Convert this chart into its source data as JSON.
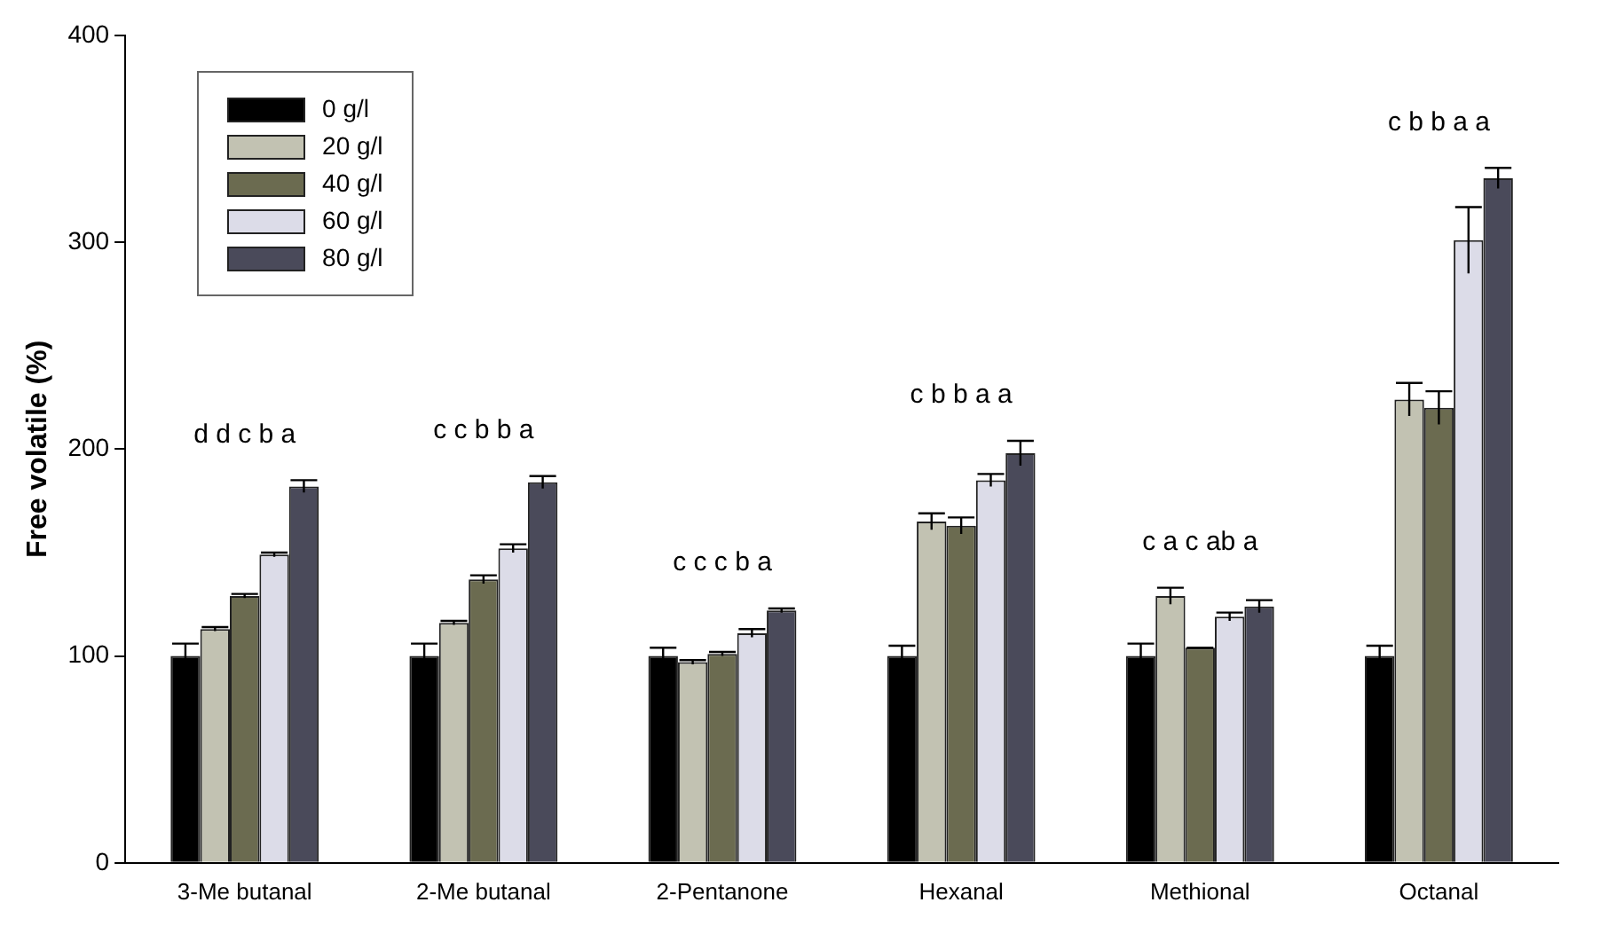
{
  "chart_data": {
    "type": "bar",
    "ylabel": "Free volatile (%)",
    "categories": [
      "3-Me butanal",
      "2-Me butanal",
      "2-Pentanone",
      "Hexanal",
      "Methional",
      "Octanal"
    ],
    "series": [
      {
        "name": "0 g/l",
        "color": "#000000",
        "values": [
          100,
          100,
          100,
          100,
          100,
          100
        ],
        "errors": [
          6,
          6,
          4,
          5,
          6,
          5
        ]
      },
      {
        "name": "20 g/l",
        "color": "#c2c2b2",
        "values": [
          113,
          116,
          97,
          165,
          129,
          224
        ],
        "errors": [
          1,
          1,
          1,
          4,
          4,
          8
        ]
      },
      {
        "name": "40 g/l",
        "color": "#6b6b50",
        "values": [
          129,
          137,
          101,
          163,
          104,
          220
        ],
        "errors": [
          1,
          2,
          1,
          4,
          0,
          8
        ]
      },
      {
        "name": "60 g/l",
        "color": "#dcdce8",
        "values": [
          149,
          152,
          111,
          185,
          119,
          301
        ],
        "errors": [
          1,
          2,
          2,
          3,
          2,
          16
        ]
      },
      {
        "name": "80 g/l",
        "color": "#4a4a5a",
        "values": [
          182,
          184,
          122,
          198,
          124,
          331
        ],
        "errors": [
          3,
          3,
          1,
          6,
          3,
          5
        ]
      }
    ],
    "ylim": [
      0,
      400
    ],
    "yticks": [
      0,
      100,
      200,
      300,
      400
    ],
    "grid": false,
    "legend": "top left",
    "annotations": [
      "d d c b a",
      "c c b b a",
      "c c c b a",
      "c b b a a",
      "c a c ab a",
      "c b b a a"
    ]
  }
}
